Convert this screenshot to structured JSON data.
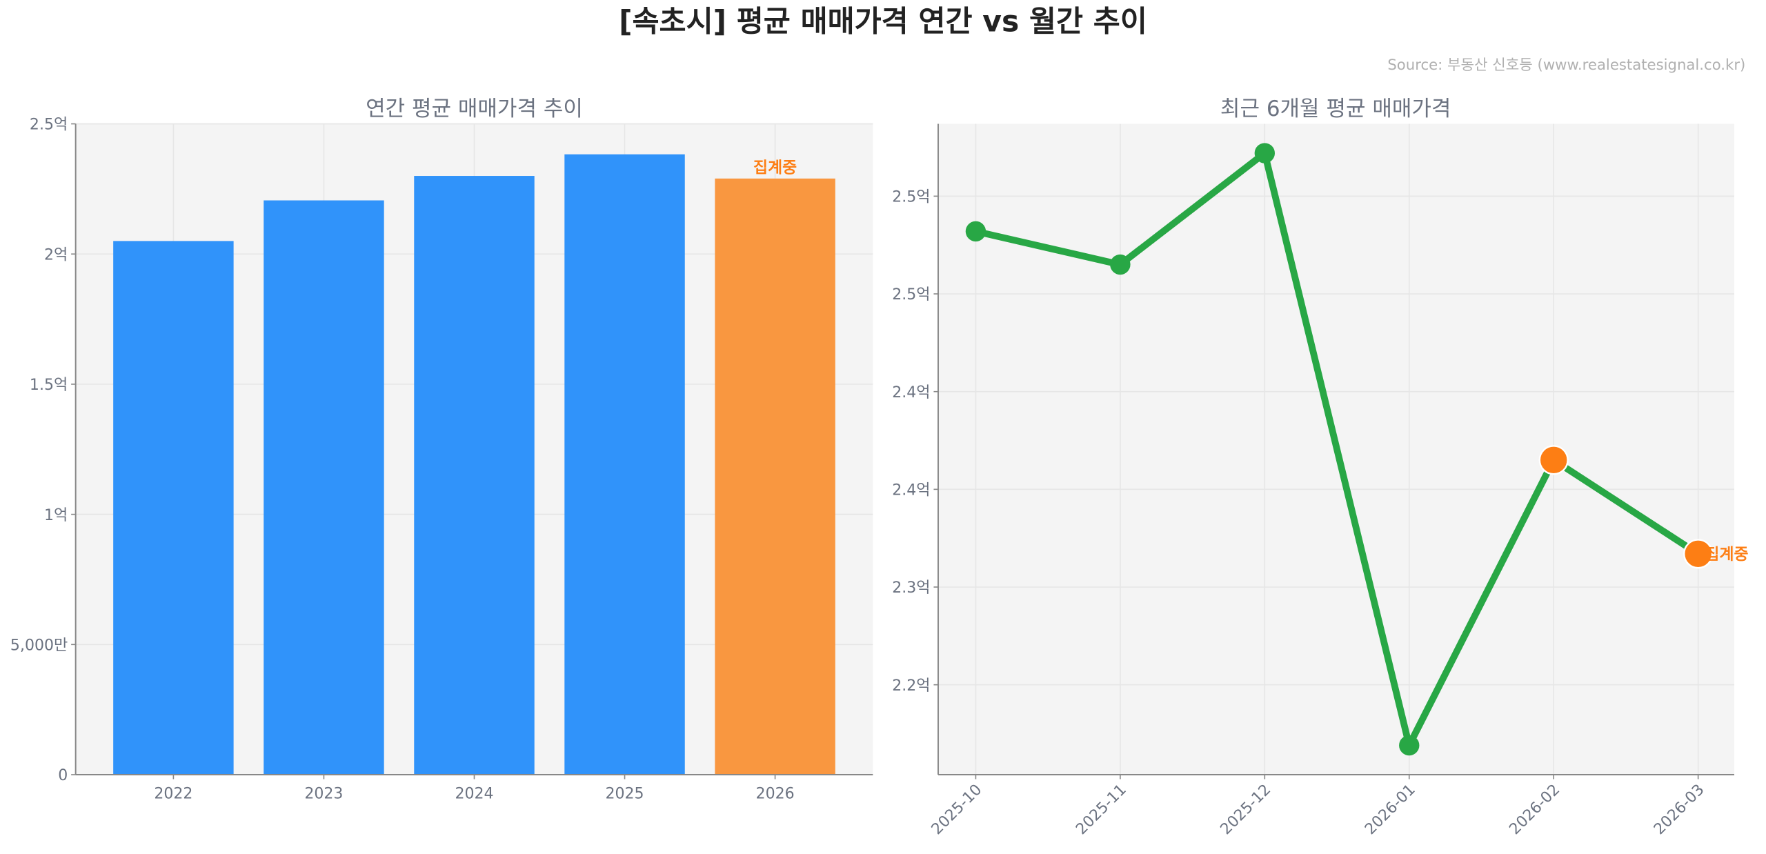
{
  "title": "[속초시] 평균 매매가격 연간 vs 월간 추이",
  "source": "Source: 부동산 신호등 (www.realestatesignal.co.kr)",
  "colors": {
    "bar": "#3093fa",
    "bar_partial": "#f99740",
    "line": "#28a745",
    "partial_marker": "#fd7e14",
    "partial_label": "#fd7e14",
    "plot_bg": "#f4f4f4"
  },
  "chart_data": [
    {
      "type": "bar",
      "title": "연간 평균 매매가격 추이",
      "categories": [
        "2022",
        "2023",
        "2024",
        "2025",
        "2026"
      ],
      "values": [
        205000000,
        220600000,
        230000000,
        238300000,
        229000000
      ],
      "partial": [
        false,
        false,
        false,
        false,
        true
      ],
      "annotation": "집계중",
      "ylim": [
        0,
        250000000
      ],
      "yticks": [
        0,
        50000000,
        100000000,
        150000000,
        200000000,
        250000000
      ],
      "ytick_labels": [
        "0",
        "5,000만",
        "1억",
        "1.5억",
        "2억",
        "2.5억"
      ],
      "grid": true
    },
    {
      "type": "line",
      "title": "최근 6개월 평균 매매가격",
      "categories": [
        "2025-10",
        "2025-11",
        "2025-12",
        "2026-01",
        "2026-02",
        "2026-03"
      ],
      "values": [
        248200000,
        246500000,
        252200000,
        221900000,
        236500000,
        231700000
      ],
      "partial": [
        false,
        false,
        false,
        false,
        true,
        true
      ],
      "annotation": "집계중",
      "ylim": [
        220400000,
        253700000
      ],
      "yticks": [
        225000000,
        230000000,
        235000000,
        240000000,
        245000000,
        250000000
      ],
      "ytick_labels": [
        "2.2억",
        "2.3억",
        "2.4억",
        "2.4억",
        "2.5억",
        "2.5억"
      ],
      "grid": true
    }
  ]
}
